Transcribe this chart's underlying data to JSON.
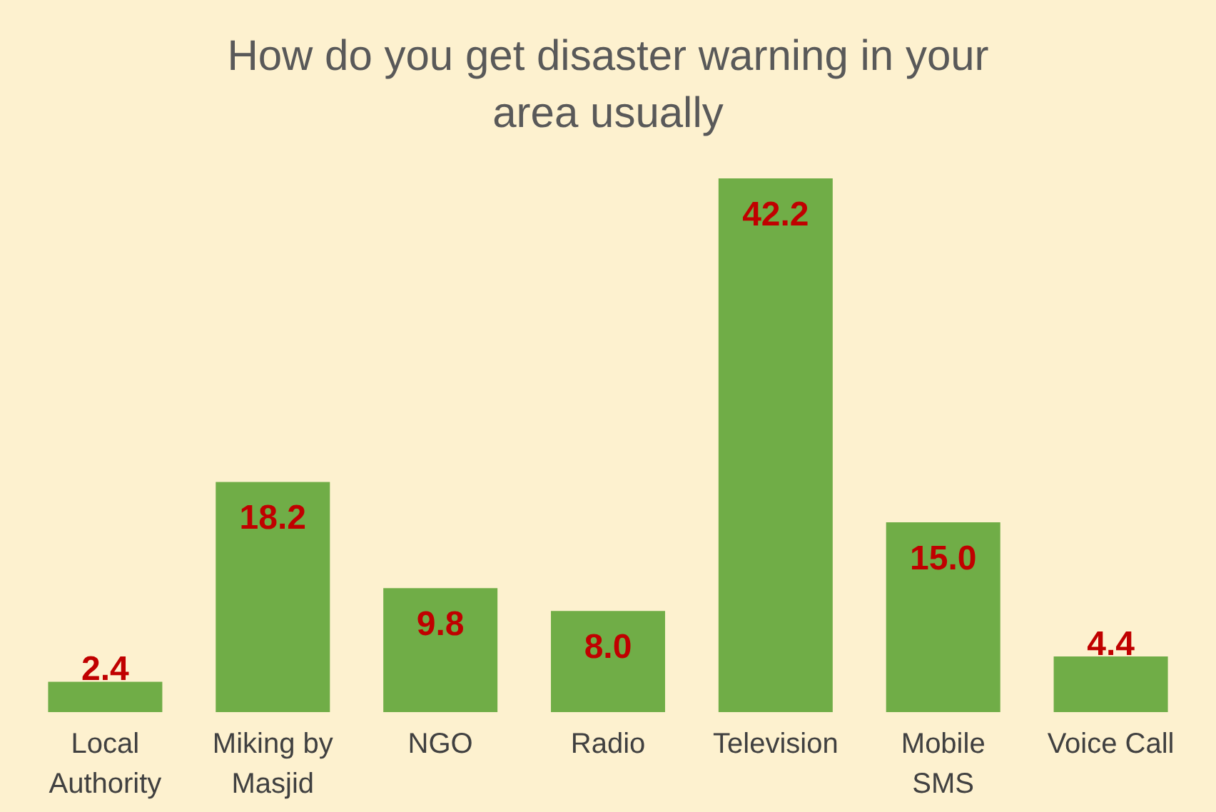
{
  "chart_data": {
    "type": "bar",
    "title": "How do you get disaster warning in your area usually",
    "categories": [
      "Local Authority",
      "Miking by Masjid",
      "NGO",
      "Radio",
      "Television",
      "Mobile SMS",
      "Voice Call"
    ],
    "values": [
      2.4,
      18.2,
      9.8,
      8.0,
      42.2,
      15.0,
      4.4
    ],
    "value_labels": [
      "2.4",
      "18.2",
      "9.8",
      "8.0",
      "42.2",
      "15.0",
      "4.4"
    ],
    "color": "#70ad47",
    "grid": false,
    "tick_labels": "x"
  }
}
